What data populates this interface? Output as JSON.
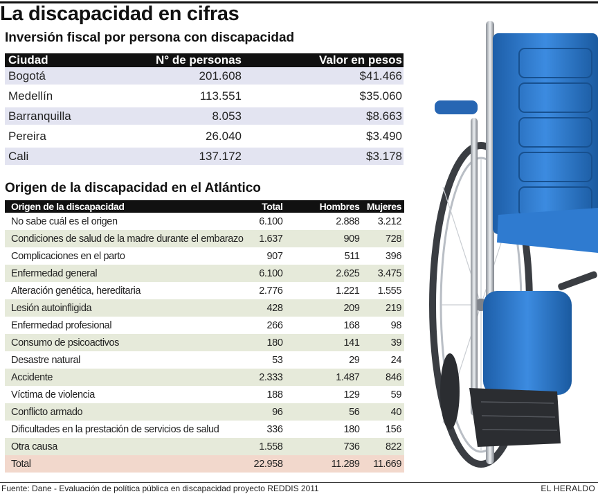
{
  "title": "La discapacidad en cifras",
  "investment": {
    "heading": "Inversión fiscal por persona con discapacidad",
    "columns": [
      "Ciudad",
      "N° de personas",
      "Valor en pesos"
    ],
    "rows": [
      {
        "city": "Bogotá",
        "people": "201.608",
        "value": "$41.466"
      },
      {
        "city": "Medellín",
        "people": "113.551",
        "value": "$35.060"
      },
      {
        "city": "Barranquilla",
        "people": "8.053",
        "value": "$8.663"
      },
      {
        "city": "Pereira",
        "people": "26.040",
        "value": "$3.490"
      },
      {
        "city": "Cali",
        "people": "137.172",
        "value": "$3.178"
      }
    ]
  },
  "origin": {
    "heading": "Origen de la discapacidad en el Atlántico",
    "columns": [
      "Origen de la discapacidad",
      "Total",
      "Hombres",
      "Mujeres"
    ],
    "rows": [
      {
        "origin": "No sabe cuál es el origen",
        "total": "6.100",
        "men": "2.888",
        "women": "3.212"
      },
      {
        "origin": "Condiciones de salud de la madre durante el embarazo",
        "total": "1.637",
        "men": "909",
        "women": "728"
      },
      {
        "origin": "Complicaciones en el parto",
        "total": "907",
        "men": "511",
        "women": "396"
      },
      {
        "origin": "Enfermedad general",
        "total": "6.100",
        "men": "2.625",
        "women": "3.475"
      },
      {
        "origin": "Alteración genética, hereditaria",
        "total": "2.776",
        "men": "1.221",
        "women": "1.555"
      },
      {
        "origin": "Lesión autoinfligida",
        "total": "428",
        "men": "209",
        "women": "219"
      },
      {
        "origin": "Enfermedad profesional",
        "total": "266",
        "men": "168",
        "women": "98"
      },
      {
        "origin": "Consumo de psicoactivos",
        "total": "180",
        "men": "141",
        "women": "39"
      },
      {
        "origin": "Desastre natural",
        "total": "53",
        "men": "29",
        "women": "24"
      },
      {
        "origin": "Accidente",
        "total": "2.333",
        "men": "1.487",
        "women": "846"
      },
      {
        "origin": "Víctima de violencia",
        "total": "188",
        "men": "129",
        "women": "59"
      },
      {
        "origin": "Conflicto armado",
        "total": "96",
        "men": "56",
        "women": "40"
      },
      {
        "origin": "Dificultades en la prestación de servicios de salud",
        "total": "336",
        "men": "180",
        "women": "156"
      },
      {
        "origin": "Otra causa",
        "total": "1.558",
        "men": "736",
        "women": "822"
      }
    ],
    "total": {
      "origin": "Total",
      "total": "22.958",
      "men": "11.289",
      "women": "11.669"
    }
  },
  "footer": {
    "source": "Fuente: Dane - Evaluación de política pública en discapacidad proyecto REDDIS 2011",
    "brand": "EL HERALDO"
  },
  "colors": {
    "shade_blue": "#e3e4f1",
    "shade_green": "#e6eada",
    "total_row": "#f2d8cc",
    "chair_blue": "#2a73c4"
  }
}
